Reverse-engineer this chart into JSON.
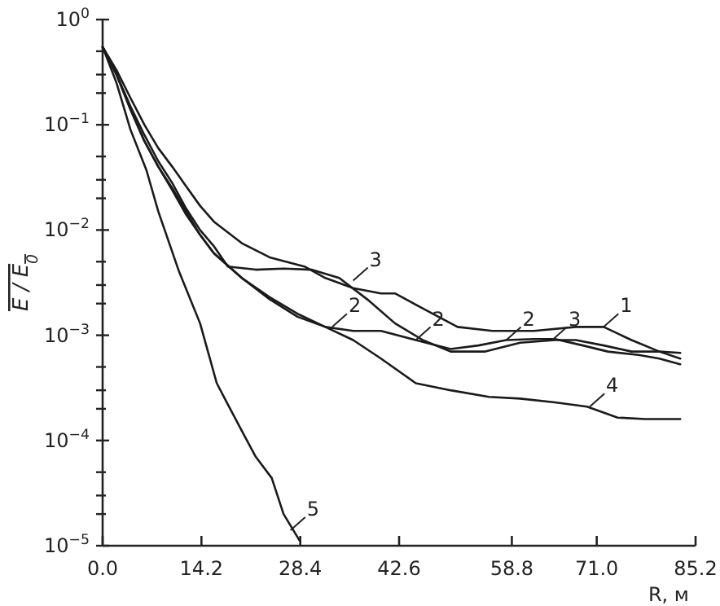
{
  "chart_data": {
    "type": "line",
    "xlabel": "R, м",
    "ylabel": "E / E$_{0}$",
    "log": "y",
    "grid": false,
    "marker": "none",
    "line_style": "solid",
    "xlim": [
      0,
      85.2
    ],
    "ylim": [
      1e-05,
      1
    ],
    "xticks": [
      {
        "value": 0,
        "label": "0.0"
      },
      {
        "value": 14.2,
        "label": "14.2"
      },
      {
        "value": 28.4,
        "label": "28.4"
      },
      {
        "value": 42.6,
        "label": "42.6"
      },
      {
        "value": 58.8,
        "label": "58.8"
      },
      {
        "value": 71,
        "label": "71.0"
      },
      {
        "value": 85.2,
        "label": "85.2"
      }
    ],
    "yticks": [
      {
        "value": 1,
        "label": "10$^{0}$"
      },
      {
        "value": 0.1,
        "label": "10$^{−1}$"
      },
      {
        "value": 0.01,
        "label": "10$^{−2}$"
      },
      {
        "value": 0.001,
        "label": "10$^{−3}$"
      },
      {
        "value": 0.0001,
        "label": "10$^{−4}$"
      },
      {
        "value": 1e-05,
        "label": "10$^{−5}$"
      },
      {
        "value": 0.5,
        "label": null
      },
      {
        "value": 0.3,
        "label": null
      },
      {
        "value": 0.2,
        "label": null
      },
      {
        "value": 0.05,
        "label": null
      },
      {
        "value": 0.03,
        "label": null
      },
      {
        "value": 0.02,
        "label": null
      },
      {
        "value": 0.005,
        "label": null
      },
      {
        "value": 0.003,
        "label": null
      },
      {
        "value": 0.002,
        "label": null
      },
      {
        "value": 0.0005,
        "label": null
      },
      {
        "value": 0.0003,
        "label": null
      },
      {
        "value": 0.0002,
        "label": null
      },
      {
        "value": 5e-05,
        "label": null
      },
      {
        "value": 3e-05,
        "label": null
      },
      {
        "value": 2e-05,
        "label": null
      }
    ],
    "series": [
      {
        "color": "#1a1a1a",
        "x": [
          0,
          2,
          4,
          6,
          8,
          10,
          12,
          14,
          16,
          20,
          24,
          29,
          32,
          36,
          40,
          42,
          46,
          51,
          56,
          62,
          68,
          72,
          76,
          80,
          83
        ],
        "values": [
          0.55,
          0.33,
          0.18,
          0.1,
          0.06,
          0.04,
          0.026,
          0.017,
          0.012,
          0.0075,
          0.0055,
          0.0045,
          0.0035,
          0.0028,
          0.0025,
          0.0025,
          0.0018,
          0.0012,
          0.0011,
          0.0011,
          0.0012,
          0.0012,
          0.0009,
          0.0007,
          0.0006
        ]
      },
      {
        "color": "#1a1a1a",
        "x": [
          0,
          2,
          4,
          6,
          8,
          10,
          12,
          14,
          16,
          20,
          24,
          28,
          32,
          36,
          40,
          45,
          50,
          54,
          58,
          62,
          65,
          69,
          72.6,
          77,
          80,
          83
        ],
        "values": [
          0.55,
          0.3,
          0.14,
          0.07,
          0.04,
          0.025,
          0.015,
          0.009,
          0.006,
          0.0035,
          0.0023,
          0.0016,
          0.0012,
          0.0011,
          0.0011,
          0.0009,
          0.00074,
          0.0008,
          0.0009,
          0.00092,
          0.00092,
          0.0008,
          0.0007,
          0.00065,
          0.0006,
          0.00053
        ]
      },
      {
        "color": "#1a1a1a",
        "x": [
          0,
          2,
          4,
          6,
          8,
          10,
          12,
          14,
          16,
          18,
          22,
          26,
          30,
          34,
          38,
          42,
          46,
          50,
          55,
          60,
          65,
          68,
          72,
          76,
          80,
          83
        ],
        "values": [
          0.55,
          0.3,
          0.15,
          0.08,
          0.045,
          0.028,
          0.016,
          0.01,
          0.007,
          0.0045,
          0.0042,
          0.0043,
          0.0042,
          0.0035,
          0.0022,
          0.0013,
          0.0009,
          0.0007,
          0.0007,
          0.00085,
          0.0009,
          0.0009,
          0.0008,
          0.0007,
          0.0007,
          0.00068
        ]
      },
      {
        "color": "#1a1a1a",
        "x": [
          0,
          2,
          4,
          6,
          8,
          10,
          12,
          14,
          16,
          20,
          24,
          28,
          32,
          36,
          40,
          45,
          50,
          55.5,
          60,
          65,
          69.6,
          74,
          78,
          83
        ],
        "values": [
          0.55,
          0.3,
          0.14,
          0.07,
          0.04,
          0.024,
          0.014,
          0.009,
          0.006,
          0.0035,
          0.0022,
          0.0015,
          0.0012,
          0.0009,
          0.0006,
          0.00035,
          0.0003,
          0.00026,
          0.00025,
          0.00023,
          0.00021,
          0.000165,
          0.00016,
          0.00016
        ]
      },
      {
        "color": "#1a1a1a",
        "x": [
          0,
          2,
          4,
          6.3,
          8,
          11,
          14,
          16.4,
          18,
          20.4,
          22,
          24.3,
          26,
          28.3
        ],
        "values": [
          0.55,
          0.25,
          0.09,
          0.037,
          0.015,
          0.004,
          0.0013,
          0.00035,
          0.00022,
          0.00011,
          7e-05,
          4.4e-05,
          2e-05,
          1.12e-05
        ]
      }
    ],
    "annotations": [
      {
        "text": "1",
        "x": 72,
        "y": 0.0012
      },
      {
        "text": "2",
        "x": 33,
        "y": 0.0012
      },
      {
        "text": "2",
        "x": 45,
        "y": 0.0009
      },
      {
        "text": "2",
        "x": 58,
        "y": 0.0009
      },
      {
        "text": "3",
        "x": 36,
        "y": 0.0033
      },
      {
        "text": "3",
        "x": 64.6,
        "y": 0.0009
      },
      {
        "text": "4",
        "x": 70,
        "y": 0.00021
      },
      {
        "text": "5",
        "x": 27,
        "y": 1.4e-05
      }
    ]
  }
}
